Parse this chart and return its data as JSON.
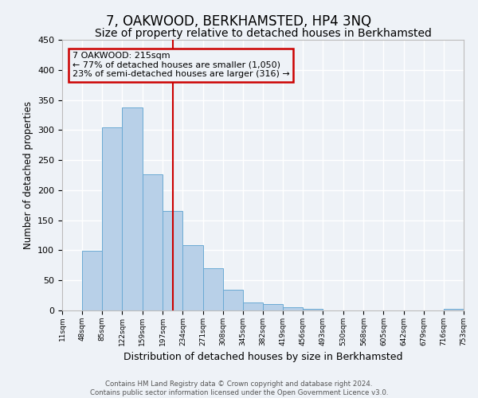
{
  "title": "7, OAKWOOD, BERKHAMSTED, HP4 3NQ",
  "subtitle": "Size of property relative to detached houses in Berkhamsted",
  "xlabel": "Distribution of detached houses by size in Berkhamsted",
  "ylabel": "Number of detached properties",
  "bin_edges": [
    11,
    48,
    85,
    122,
    159,
    197,
    234,
    271,
    308,
    345,
    382,
    419,
    456,
    493,
    530,
    568,
    605,
    642,
    679,
    716,
    753
  ],
  "bin_labels": [
    "11sqm",
    "48sqm",
    "85sqm",
    "122sqm",
    "159sqm",
    "197sqm",
    "234sqm",
    "271sqm",
    "308sqm",
    "345sqm",
    "382sqm",
    "419sqm",
    "456sqm",
    "493sqm",
    "530sqm",
    "568sqm",
    "605sqm",
    "642sqm",
    "679sqm",
    "716sqm",
    "753sqm"
  ],
  "counts": [
    0,
    99,
    304,
    337,
    226,
    165,
    109,
    70,
    34,
    13,
    11,
    5,
    2,
    0,
    0,
    0,
    0,
    0,
    0,
    2
  ],
  "bar_color": "#b8d0e8",
  "bar_edge_color": "#6aaad4",
  "ylim": [
    0,
    450
  ],
  "yticks": [
    0,
    50,
    100,
    150,
    200,
    250,
    300,
    350,
    400,
    450
  ],
  "property_size": 215,
  "vline_color": "#cc0000",
  "annotation_text_line1": "7 OAKWOOD: 215sqm",
  "annotation_text_line2": "← 77% of detached houses are smaller (1,050)",
  "annotation_text_line3": "23% of semi-detached houses are larger (316) →",
  "annotation_box_edge_color": "#cc0000",
  "footer_line1": "Contains HM Land Registry data © Crown copyright and database right 2024.",
  "footer_line2": "Contains public sector information licensed under the Open Government Licence v3.0.",
  "background_color": "#eef2f7",
  "grid_color": "#ffffff",
  "title_fontsize": 12,
  "subtitle_fontsize": 10
}
